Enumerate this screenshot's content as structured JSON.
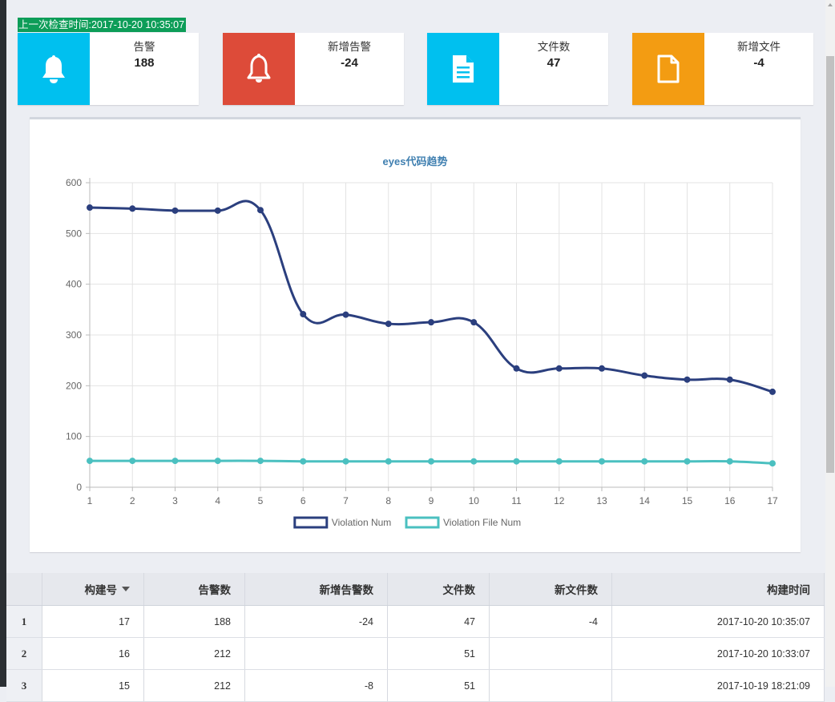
{
  "header": {
    "last_check": "上一次检查时间:2017-10-20 10:35:07"
  },
  "cards": [
    {
      "label": "告警",
      "value": "188",
      "icon": "bell-icon",
      "color": "#00c0ef"
    },
    {
      "label": "新增告警",
      "value": "-24",
      "icon": "bell-outline-icon",
      "color": "#dd4b39"
    },
    {
      "label": "文件数",
      "value": "47",
      "icon": "file-text-icon",
      "color": "#00c0ef"
    },
    {
      "label": "新增文件",
      "value": "-4",
      "icon": "file-outline-icon",
      "color": "#f39c12"
    }
  ],
  "chart_data": {
    "type": "line",
    "title": "eyes代码趋势",
    "x": [
      1,
      2,
      3,
      4,
      5,
      6,
      7,
      8,
      9,
      10,
      11,
      12,
      13,
      14,
      15,
      16,
      17
    ],
    "ylim": [
      0,
      600
    ],
    "yticks": [
      0,
      100,
      200,
      300,
      400,
      500,
      600
    ],
    "grid": true,
    "legend_position": "bottom",
    "series": [
      {
        "name": "Violation Num",
        "color": "#2b3f7e",
        "values": [
          551,
          549,
          545,
          545,
          546,
          341,
          340,
          322,
          325,
          325,
          234,
          234,
          234,
          220,
          212,
          212,
          188
        ]
      },
      {
        "name": "Violation File Num",
        "color": "#4bc0c0",
        "values": [
          52,
          52,
          52,
          52,
          52,
          51,
          51,
          51,
          51,
          51,
          51,
          51,
          51,
          51,
          51,
          51,
          47
        ]
      }
    ]
  },
  "table": {
    "headers": [
      "",
      "构建号",
      "告警数",
      "新增告警数",
      "文件数",
      "新文件数",
      "构建时间"
    ],
    "rows": [
      [
        "1",
        "17",
        "188",
        "-24",
        "47",
        "-4",
        "2017-10-20 10:35:07"
      ],
      [
        "2",
        "16",
        "212",
        "",
        "51",
        "",
        "2017-10-20 10:33:07"
      ],
      [
        "3",
        "15",
        "212",
        "-8",
        "51",
        "",
        "2017-10-19 18:21:09"
      ]
    ]
  }
}
